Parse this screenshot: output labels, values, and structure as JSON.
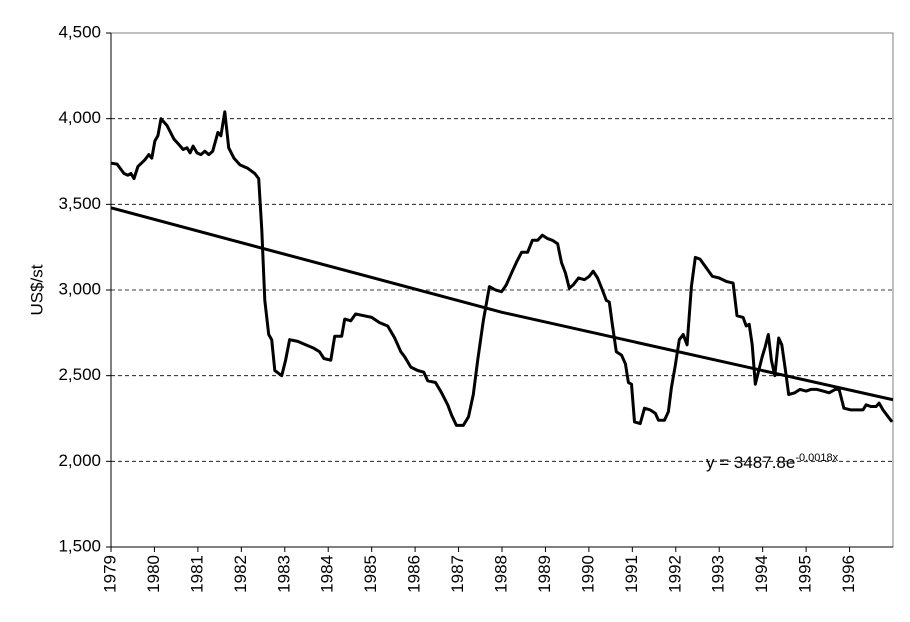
{
  "chart_data": {
    "type": "line",
    "ylabel": "US$/st",
    "xlim": [
      1979,
      1997
    ],
    "xticks": [
      1979,
      1980,
      1981,
      1982,
      1983,
      1984,
      1985,
      1986,
      1987,
      1988,
      1989,
      1990,
      1991,
      1992,
      1993,
      1994,
      1995,
      1996
    ],
    "ylim": [
      1500,
      4500
    ],
    "yticks": [
      {
        "value": 1500,
        "label": "1,500"
      },
      {
        "value": 2000,
        "label": "2,000"
      },
      {
        "value": 2500,
        "label": "2,500"
      },
      {
        "value": 3000,
        "label": "3,000"
      },
      {
        "value": 3500,
        "label": "3,500"
      },
      {
        "value": 4000,
        "label": "4,000"
      },
      {
        "value": 4500,
        "label": "4,500"
      }
    ],
    "grid": true,
    "x": [
      1979.0,
      1979.14,
      1979.3,
      1979.39,
      1979.46,
      1979.53,
      1979.62,
      1979.78,
      1979.87,
      1979.94,
      1980.01,
      1980.08,
      1980.15,
      1980.29,
      1980.45,
      1980.56,
      1980.66,
      1980.75,
      1980.82,
      1980.89,
      1980.98,
      1981.07,
      1981.16,
      1981.25,
      1981.34,
      1981.46,
      1981.53,
      1981.62,
      1981.71,
      1981.83,
      1981.97,
      1982.15,
      1982.31,
      1982.4,
      1982.47,
      1982.54,
      1982.63,
      1982.7,
      1982.77,
      1982.93,
      1983.02,
      1983.11,
      1983.3,
      1983.48,
      1983.67,
      1983.8,
      1983.9,
      1984.06,
      1984.15,
      1984.31,
      1984.38,
      1984.52,
      1984.63,
      1984.82,
      1985.0,
      1985.18,
      1985.37,
      1985.53,
      1985.67,
      1985.76,
      1985.9,
      1986.06,
      1986.2,
      1986.29,
      1986.47,
      1986.61,
      1986.75,
      1986.84,
      1986.95,
      1987.11,
      1987.23,
      1987.34,
      1987.44,
      1987.57,
      1987.71,
      1987.85,
      1987.99,
      1988.1,
      1988.22,
      1988.33,
      1988.45,
      1988.59,
      1988.7,
      1988.82,
      1988.93,
      1989.05,
      1989.16,
      1989.28,
      1989.37,
      1989.46,
      1989.55,
      1989.64,
      1989.76,
      1989.9,
      1990.01,
      1990.1,
      1990.2,
      1990.31,
      1990.4,
      1990.47,
      1990.54,
      1990.63,
      1990.75,
      1990.84,
      1990.91,
      1990.98,
      1991.05,
      1991.18,
      1991.28,
      1991.41,
      1991.53,
      1991.6,
      1991.74,
      1991.83,
      1991.9,
      1991.99,
      1992.08,
      1992.17,
      1992.26,
      1992.36,
      1992.45,
      1992.56,
      1992.7,
      1992.84,
      1993.0,
      1993.16,
      1993.32,
      1993.41,
      1993.55,
      1993.62,
      1993.69,
      1993.76,
      1993.83,
      1993.9,
      1993.99,
      1994.06,
      1994.13,
      1994.2,
      1994.28,
      1994.37,
      1994.44,
      1994.53,
      1994.6,
      1994.74,
      1994.86,
      1995.0,
      1995.11,
      1995.25,
      1995.39,
      1995.53,
      1995.67,
      1995.76,
      1995.87,
      1996.03,
      1996.17,
      1996.31,
      1996.38,
      1996.49,
      1996.61,
      1996.68,
      1996.77,
      1996.89,
      1996.98
    ],
    "series": [
      {
        "color": "#000000",
        "values": [
          3740,
          3735,
          3680,
          3670,
          3680,
          3650,
          3720,
          3760,
          3790,
          3770,
          3870,
          3900,
          4000,
          3960,
          3880,
          3850,
          3820,
          3830,
          3800,
          3840,
          3800,
          3790,
          3810,
          3790,
          3810,
          3920,
          3900,
          4040,
          3830,
          3770,
          3730,
          3710,
          3680,
          3650,
          3350,
          2940,
          2740,
          2710,
          2530,
          2500,
          2590,
          2710,
          2700,
          2680,
          2660,
          2640,
          2600,
          2590,
          2730,
          2730,
          2830,
          2820,
          2860,
          2850,
          2840,
          2810,
          2790,
          2720,
          2640,
          2610,
          2550,
          2530,
          2520,
          2470,
          2460,
          2400,
          2330,
          2270,
          2210,
          2210,
          2260,
          2390,
          2590,
          2820,
          3020,
          3000,
          2990,
          3030,
          3100,
          3160,
          3220,
          3220,
          3290,
          3290,
          3320,
          3300,
          3290,
          3270,
          3160,
          3100,
          3010,
          3030,
          3070,
          3060,
          3080,
          3110,
          3070,
          3000,
          2940,
          2930,
          2800,
          2640,
          2620,
          2570,
          2460,
          2450,
          2230,
          2220,
          2310,
          2300,
          2280,
          2240,
          2240,
          2290,
          2430,
          2560,
          2710,
          2740,
          2680,
          3020,
          3190,
          3180,
          3130,
          3080,
          3070,
          3050,
          3040,
          2850,
          2840,
          2790,
          2800,
          2680,
          2450,
          2520,
          2610,
          2670,
          2740,
          2590,
          2500,
          2720,
          2680,
          2520,
          2390,
          2400,
          2420,
          2410,
          2420,
          2420,
          2410,
          2400,
          2420,
          2420,
          2310,
          2300,
          2300,
          2300,
          2330,
          2320,
          2320,
          2340,
          2300,
          2260,
          2230
        ]
      }
    ],
    "trendline": {
      "color": "#000000",
      "x": [
        1979,
        1988,
        1997
      ],
      "values": [
        3480,
        2870,
        2360
      ]
    },
    "annotation": {
      "text": "y = 3487.8e",
      "superscript": "-0.0018x"
    }
  }
}
